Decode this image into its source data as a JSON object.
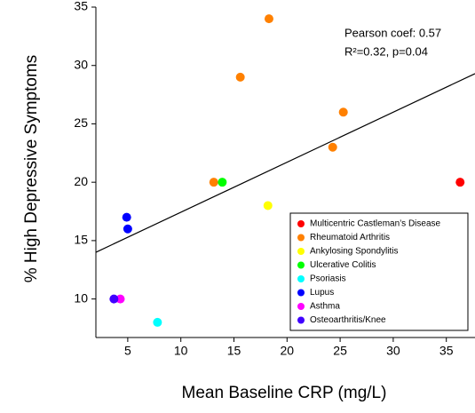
{
  "chart_data": {
    "type": "scatter",
    "x_label": "Mean Baseline CRP (mg/L)",
    "y_label": "% High Depressive Symptoms",
    "xlim": [
      2,
      37.7
    ],
    "ylim": [
      6.7,
      35
    ],
    "xticks": [
      5,
      10,
      15,
      20,
      25,
      30,
      35
    ],
    "yticks": [
      10,
      15,
      20,
      25,
      30,
      35
    ],
    "annotations": [
      "Pearson coef: 0.57",
      "R²=0.32, p=0.04"
    ],
    "trendline": {
      "x": [
        2,
        37.7
      ],
      "y": [
        14,
        29.3
      ]
    },
    "legend": "lower right",
    "series": [
      {
        "name": "Multicentric Castleman’s Disease",
        "color": "#ff0000",
        "x": [
          36.3
        ],
        "y": [
          20
        ]
      },
      {
        "name": "Rheumatoid Arthritis",
        "color": "#ff8000",
        "x": [
          18.3,
          15.6,
          25.3,
          24.3,
          13.1
        ],
        "y": [
          34,
          29,
          26,
          23,
          20
        ]
      },
      {
        "name": "Ankylosing Spondylitis",
        "color": "#ffff00",
        "x": [
          18.2
        ],
        "y": [
          18
        ]
      },
      {
        "name": "Ulcerative Colitis",
        "color": "#00ff00",
        "x": [
          13.9
        ],
        "y": [
          20
        ]
      },
      {
        "name": "Psoriasis",
        "color": "#00ffff",
        "x": [
          7.8
        ],
        "y": [
          8
        ]
      },
      {
        "name": "Lupus",
        "color": "#0000ff",
        "x": [
          4.9,
          5.0
        ],
        "y": [
          17,
          16
        ]
      },
      {
        "name": "Asthma",
        "color": "#ff00ff",
        "x": [
          4.3
        ],
        "y": [
          10
        ]
      },
      {
        "name": "Osteoarthritis/Knee",
        "color": "#4000ff",
        "x": [
          3.7
        ],
        "y": [
          10
        ]
      }
    ]
  }
}
